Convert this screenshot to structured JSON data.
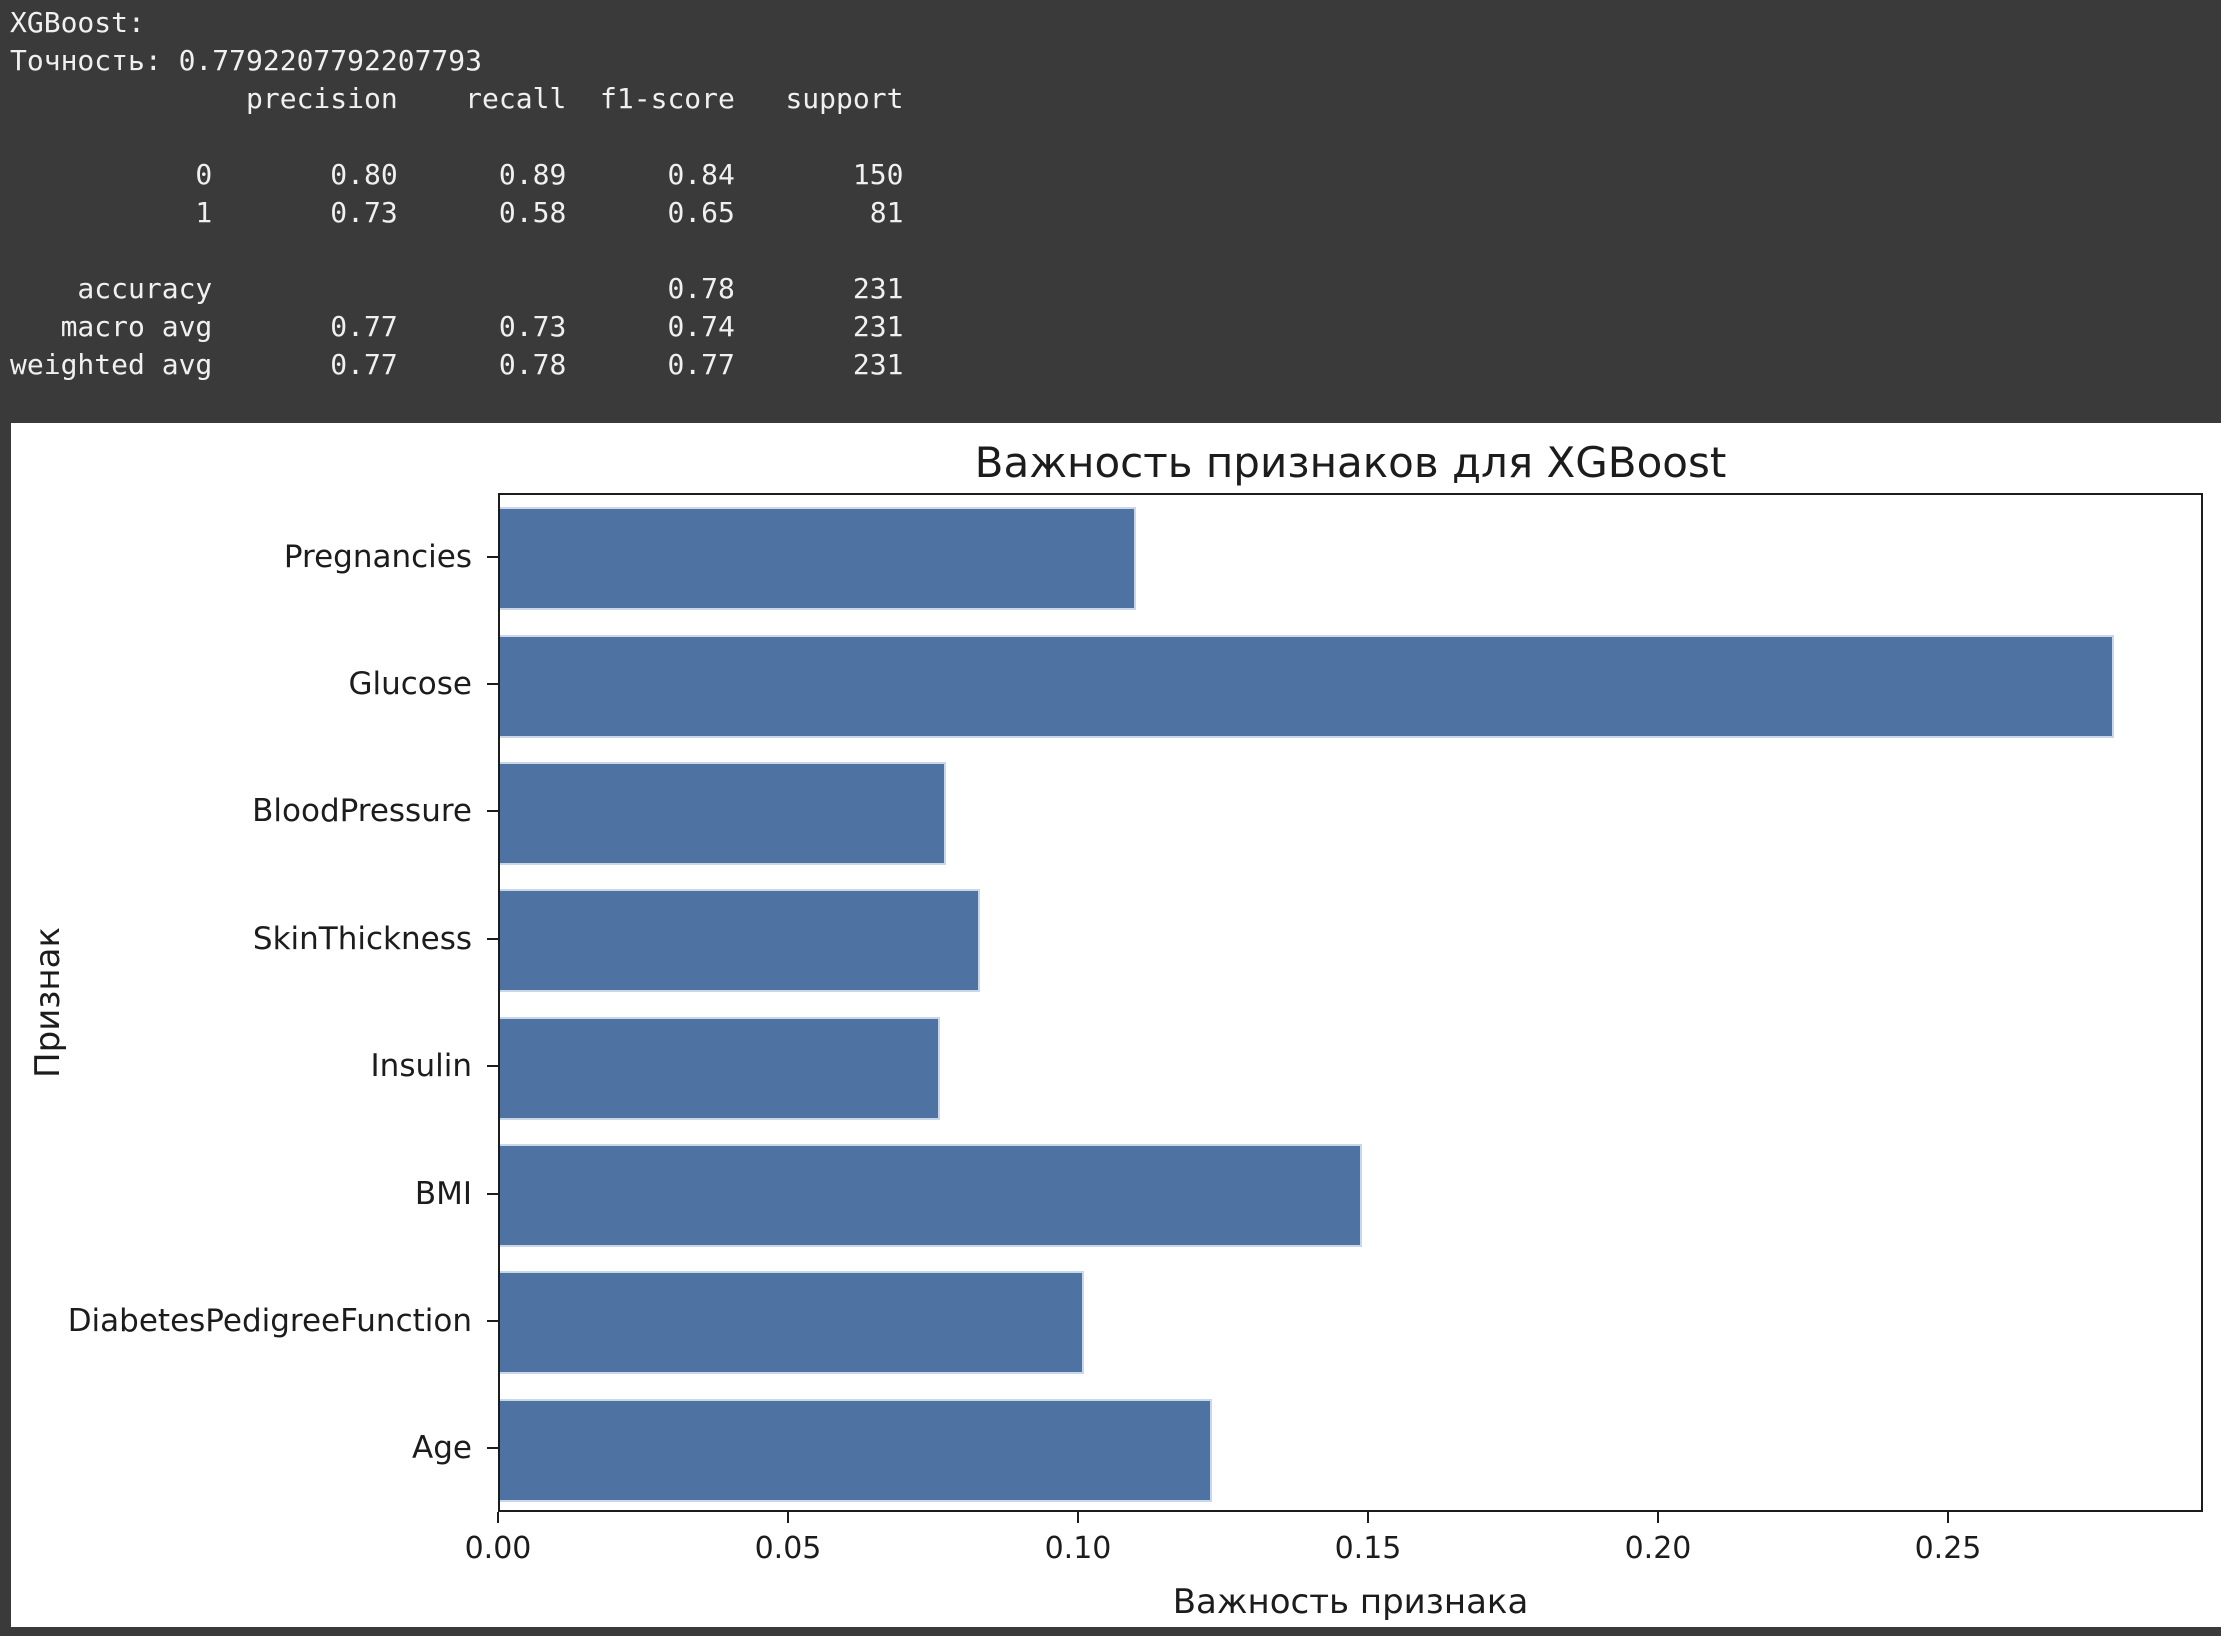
{
  "terminal": {
    "bg_color": "#3a3a3a",
    "text_color": "#f0f0f0",
    "lines": [
      "XGBoost:",
      "Точность: 0.7792207792207793",
      "              precision    recall  f1-score   support",
      "",
      "           0       0.80      0.89      0.84       150",
      "           1       0.73      0.58      0.65        81",
      "",
      "    accuracy                           0.78       231",
      "   macro avg       0.77      0.73      0.74       231",
      "weighted avg       0.77      0.78      0.77       231"
    ],
    "report_table": {
      "columns": [
        "precision",
        "recall",
        "f1-score",
        "support"
      ],
      "rows": [
        {
          "label": "0",
          "precision": "0.80",
          "recall": "0.89",
          "f1-score": "0.84",
          "support": "150"
        },
        {
          "label": "1",
          "precision": "0.73",
          "recall": "0.58",
          "f1-score": "0.65",
          "support": "81"
        },
        {
          "label": "accuracy",
          "precision": "",
          "recall": "",
          "f1-score": "0.78",
          "support": "231"
        },
        {
          "label": "macro avg",
          "precision": "0.77",
          "recall": "0.73",
          "f1-score": "0.74",
          "support": "231"
        },
        {
          "label": "weighted avg",
          "precision": "0.77",
          "recall": "0.78",
          "f1-score": "0.77",
          "support": "231"
        }
      ]
    },
    "model_name": "XGBoost:",
    "accuracy_line": "Точность: 0.7792207792207793"
  },
  "chart_data": {
    "type": "bar",
    "orientation": "horizontal",
    "title": "Важность признаков для XGBoost",
    "xlabel": "Важность признака",
    "ylabel": "Признак",
    "categories": [
      "Pregnancies",
      "Glucose",
      "BloodPressure",
      "SkinThickness",
      "Insulin",
      "BMI",
      "DiabetesPedigreeFunction",
      "Age"
    ],
    "values": [
      0.11,
      0.279,
      0.077,
      0.083,
      0.076,
      0.149,
      0.101,
      0.123
    ],
    "xlim": [
      0,
      0.294
    ],
    "xticks": [
      "0.00",
      "0.05",
      "0.10",
      "0.15",
      "0.20",
      "0.25"
    ],
    "xtick_values": [
      0.0,
      0.05,
      0.1,
      0.15,
      0.2,
      0.25
    ],
    "grid": false,
    "legend": null,
    "bar_color": "#4e73a3",
    "bar_edge_color": "#c9d7e8",
    "figure_bg": "#ffffff",
    "text_color": "#1c1c1c"
  }
}
